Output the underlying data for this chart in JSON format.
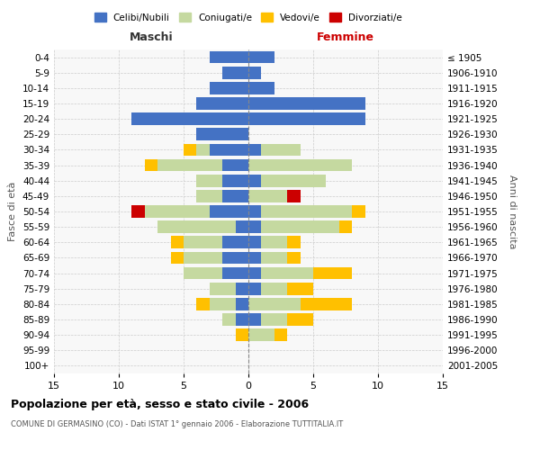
{
  "age_groups": [
    "0-4",
    "5-9",
    "10-14",
    "15-19",
    "20-24",
    "25-29",
    "30-34",
    "35-39",
    "40-44",
    "45-49",
    "50-54",
    "55-59",
    "60-64",
    "65-69",
    "70-74",
    "75-79",
    "80-84",
    "85-89",
    "90-94",
    "95-99",
    "100+"
  ],
  "birth_years": [
    "2001-2005",
    "1996-2000",
    "1991-1995",
    "1986-1990",
    "1981-1985",
    "1976-1980",
    "1971-1975",
    "1966-1970",
    "1961-1965",
    "1956-1960",
    "1951-1955",
    "1946-1950",
    "1941-1945",
    "1936-1940",
    "1931-1935",
    "1926-1930",
    "1921-1925",
    "1916-1920",
    "1911-1915",
    "1906-1910",
    "≤ 1905"
  ],
  "males": {
    "celibi": [
      3,
      2,
      3,
      4,
      9,
      4,
      3,
      2,
      2,
      2,
      3,
      1,
      2,
      2,
      2,
      1,
      1,
      1,
      0,
      0,
      0
    ],
    "coniugati": [
      0,
      0,
      0,
      0,
      0,
      0,
      1,
      5,
      2,
      2,
      5,
      6,
      3,
      3,
      3,
      2,
      2,
      1,
      0,
      0,
      0
    ],
    "vedovi": [
      0,
      0,
      0,
      0,
      0,
      0,
      1,
      1,
      0,
      0,
      0,
      0,
      1,
      1,
      0,
      0,
      1,
      0,
      1,
      0,
      0
    ],
    "divorziati": [
      0,
      0,
      0,
      0,
      0,
      0,
      0,
      0,
      0,
      0,
      1,
      0,
      0,
      0,
      0,
      0,
      0,
      0,
      0,
      0,
      0
    ]
  },
  "females": {
    "nubili": [
      2,
      1,
      2,
      9,
      9,
      0,
      1,
      0,
      1,
      0,
      1,
      1,
      1,
      1,
      1,
      1,
      0,
      1,
      0,
      0,
      0
    ],
    "coniugate": [
      0,
      0,
      0,
      0,
      0,
      0,
      3,
      8,
      5,
      3,
      7,
      6,
      2,
      2,
      4,
      2,
      4,
      2,
      2,
      0,
      0
    ],
    "vedove": [
      0,
      0,
      0,
      0,
      0,
      0,
      0,
      0,
      0,
      0,
      1,
      1,
      1,
      1,
      3,
      2,
      4,
      2,
      1,
      0,
      0
    ],
    "divorziate": [
      0,
      0,
      0,
      0,
      0,
      0,
      0,
      0,
      0,
      1,
      0,
      0,
      0,
      0,
      0,
      0,
      0,
      0,
      0,
      0,
      0
    ]
  },
  "colors": {
    "celibi_nubili": "#4472c4",
    "coniugati": "#c5d9a0",
    "vedovi": "#ffc000",
    "divorziati": "#cc0000"
  },
  "title": "Popolazione per età, sesso e stato civile - 2006",
  "subtitle": "COMUNE DI GERMASINO (CO) - Dati ISTAT 1° gennaio 2006 - Elaborazione TUTTITALIA.IT",
  "xlabel_left": "Maschi",
  "xlabel_right": "Femmine",
  "ylabel_left": "Fasce di età",
  "ylabel_right": "Anni di nascita",
  "xlim": 15,
  "bg_color": "#ffffff",
  "grid_color": "#cccccc",
  "legend_labels": [
    "Celibi/Nubili",
    "Coniugati/e",
    "Vedovi/e",
    "Divorziati/e"
  ]
}
